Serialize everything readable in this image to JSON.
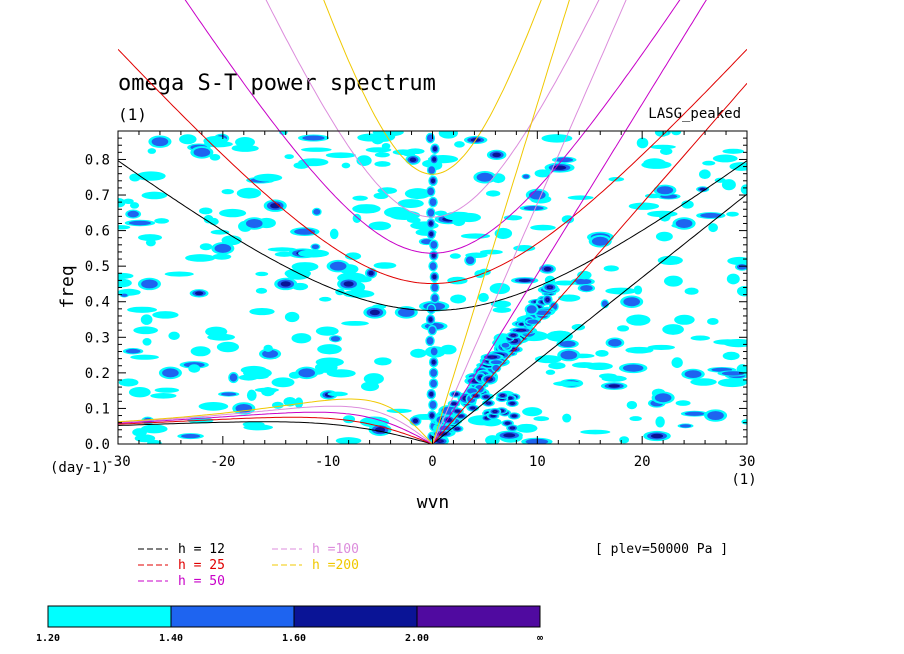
{
  "chart_data": {
    "type": "heatmap",
    "title": "omega S-T power spectrum",
    "subtitle": "(1)",
    "right_label": "LASG_peaked",
    "xlabel": "wvn",
    "ylabel": "freq",
    "x_unit_label": "(1)",
    "y_unit_label": "(day-1)",
    "plev_label": "[ plev=50000 Pa ]",
    "xlim": [
      -30,
      30
    ],
    "ylim": [
      0.0,
      0.88
    ],
    "x_ticks": [
      -30,
      -20,
      -10,
      0,
      10,
      20,
      30
    ],
    "x_tick_labels": [
      "-30",
      "-20",
      "-10",
      "0",
      "10",
      "20",
      "30"
    ],
    "y_ticks": [
      0.0,
      0.1,
      0.2,
      0.3,
      0.4,
      0.5,
      0.6,
      0.7,
      0.8
    ],
    "y_tick_labels": [
      "0.0",
      "0.1",
      "0.2",
      "0.3",
      "0.4",
      "0.5",
      "0.6",
      "0.7",
      "0.8"
    ],
    "levels": [
      {
        "label": "1.20",
        "color": "#00ffff"
      },
      {
        "label": "1.40",
        "color": "#1e64f0"
      },
      {
        "label": "1.60",
        "color": "#0a1496"
      },
      {
        "label": "2.00",
        "color": "#500aa0"
      },
      {
        "label": "∞",
        "color": ""
      }
    ],
    "dispersion_curves": [
      {
        "name": "h = 12",
        "h": 12,
        "color": "#000000"
      },
      {
        "name": "h = 25",
        "h": 25,
        "color": "#e00000"
      },
      {
        "name": "h = 50",
        "h": 50,
        "color": "#c800c8"
      },
      {
        "name": "h =100",
        "h": 100,
        "color": "#dc8cdc"
      },
      {
        "name": "h =200",
        "h": 200,
        "color": "#f0c800"
      }
    ],
    "features": [
      {
        "name": "kelvin-band",
        "wvn_range": [
          0,
          12
        ],
        "freq_range": [
          0.0,
          0.45
        ],
        "level": "2.00"
      },
      {
        "name": "zero-wvn-column",
        "wvn": 0,
        "freq_range": [
          0.0,
          0.88
        ],
        "level": "1.60"
      },
      {
        "name": "er-band-near-wvn-minus5",
        "wvn": -5,
        "freq": 0.37,
        "level": "1.60"
      }
    ]
  }
}
